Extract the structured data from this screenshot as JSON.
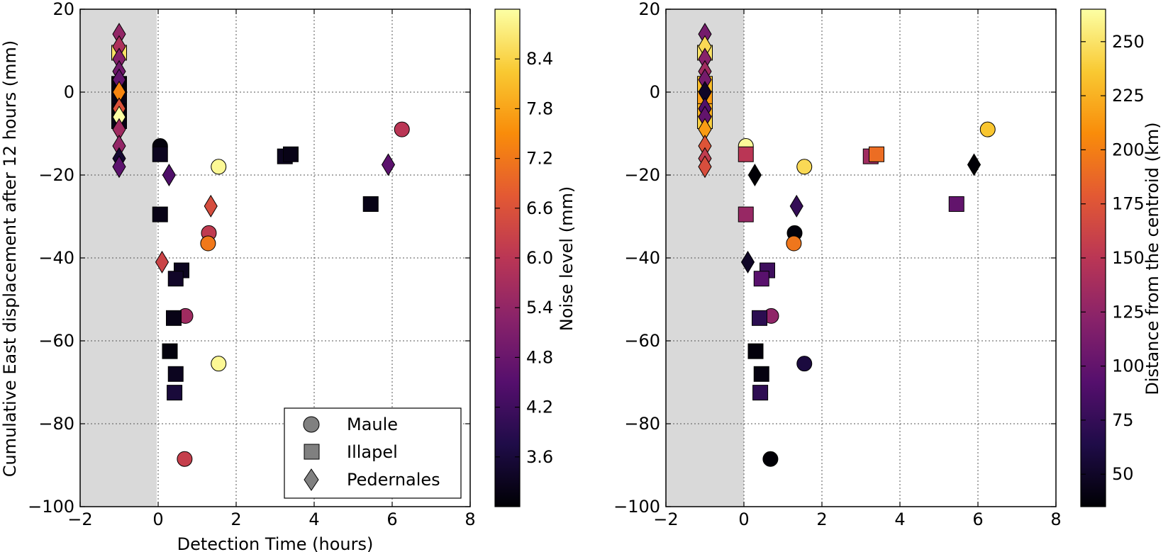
{
  "chart_data": [
    {
      "type": "scatter",
      "xlabel": "Detection Time (hours)",
      "ylabel": "Cumulative East displacement after 12 hours (mm)",
      "xlim": [
        -2,
        8
      ],
      "ylim": [
        -100,
        20
      ],
      "xticks": [
        "−2",
        "0",
        "2",
        "4",
        "6",
        "8"
      ],
      "yticks": [
        "−100",
        "−80",
        "−60",
        "−40",
        "−20",
        "0",
        "20"
      ],
      "grid": true,
      "shaded_region": [
        -2,
        0
      ],
      "colorbar": {
        "label": "Noise level (mm)",
        "range": [
          3.0,
          9.0
        ],
        "ticks": [
          "3.6",
          "4.2",
          "4.8",
          "5.4",
          "6.0",
          "6.6",
          "7.2",
          "7.8",
          "8.4"
        ]
      },
      "legend": {
        "placement": "lower-right",
        "entries": [
          "Maule",
          "Illapel",
          "Pedernales"
        ]
      },
      "series": [
        {
          "name": "Maule",
          "marker": "circle",
          "points": [
            {
              "x": 0.05,
              "y": -13,
              "c": 3.1
            },
            {
              "x": 1.55,
              "y": -18,
              "c": 8.9
            },
            {
              "x": 1.3,
              "y": -34,
              "c": 6.1
            },
            {
              "x": 1.28,
              "y": -36.5,
              "c": 7.2
            },
            {
              "x": 0.7,
              "y": -54,
              "c": 5.6
            },
            {
              "x": 1.55,
              "y": -65.5,
              "c": 8.9
            },
            {
              "x": 0.68,
              "y": -88.5,
              "c": 6.2
            },
            {
              "x": 6.25,
              "y": -9,
              "c": 6.0
            }
          ]
        },
        {
          "name": "Illapel",
          "marker": "square",
          "points": [
            {
              "x": -1.0,
              "y": -7,
              "c": 3.2
            },
            {
              "x": -1.0,
              "y": -4,
              "c": 3.1
            },
            {
              "x": -1.0,
              "y": -1,
              "c": 3.2
            },
            {
              "x": -1.0,
              "y": 2,
              "c": 3.1
            },
            {
              "x": -1.0,
              "y": 9.5,
              "c": 8.6
            },
            {
              "x": 0.05,
              "y": -15,
              "c": 3.3
            },
            {
              "x": 0.05,
              "y": -29.5,
              "c": 3.2
            },
            {
              "x": 0.6,
              "y": -43,
              "c": 3.3
            },
            {
              "x": 0.45,
              "y": -45,
              "c": 3.4
            },
            {
              "x": 0.4,
              "y": -54.5,
              "c": 3.2
            },
            {
              "x": 0.3,
              "y": -62.5,
              "c": 3.1
            },
            {
              "x": 0.45,
              "y": -68,
              "c": 3.3
            },
            {
              "x": 0.42,
              "y": -72.5,
              "c": 3.6
            },
            {
              "x": 3.25,
              "y": -15.5,
              "c": 3.3
            },
            {
              "x": 3.4,
              "y": -15,
              "c": 3.2
            },
            {
              "x": 5.45,
              "y": -27,
              "c": 3.2
            }
          ]
        },
        {
          "name": "Pedernales",
          "marker": "diamond",
          "points": [
            {
              "x": -1.0,
              "y": 14,
              "c": 5.4
            },
            {
              "x": -1.0,
              "y": 11,
              "c": 5.8
            },
            {
              "x": -1.0,
              "y": 8,
              "c": 5.2
            },
            {
              "x": -1.0,
              "y": 5,
              "c": 4.9
            },
            {
              "x": -1.0,
              "y": 3,
              "c": 4.7
            },
            {
              "x": -1.0,
              "y": 0,
              "c": 7.4
            },
            {
              "x": -1.0,
              "y": -4,
              "c": 6.6
            },
            {
              "x": -1.0,
              "y": -6,
              "c": 9.0
            },
            {
              "x": -1.0,
              "y": -9,
              "c": 5.6
            },
            {
              "x": -1.0,
              "y": -13,
              "c": 5.4
            },
            {
              "x": -1.0,
              "y": -16,
              "c": 3.5
            },
            {
              "x": -1.0,
              "y": -18,
              "c": 4.6
            },
            {
              "x": 0.28,
              "y": -20,
              "c": 4.4
            },
            {
              "x": 0.1,
              "y": -41,
              "c": 6.3
            },
            {
              "x": 1.35,
              "y": -27.5,
              "c": 6.5
            },
            {
              "x": 5.9,
              "y": -17.5,
              "c": 4.6
            }
          ]
        }
      ]
    },
    {
      "type": "scatter",
      "xlabel": "",
      "ylabel": "",
      "xlim": [
        -2,
        8
      ],
      "ylim": [
        -100,
        20
      ],
      "xticks": [
        "−2",
        "0",
        "2",
        "4",
        "6",
        "8"
      ],
      "yticks": [
        "−100",
        "−80",
        "−60",
        "−40",
        "−20",
        "0",
        "20"
      ],
      "grid": true,
      "shaded_region": [
        -2,
        0
      ],
      "colorbar": {
        "label": "Distance from the centroid (km)",
        "range": [
          35,
          265
        ],
        "ticks": [
          "50",
          "75",
          "100",
          "125",
          "150",
          "175",
          "200",
          "225",
          "250"
        ]
      },
      "series": [
        {
          "name": "Maule",
          "marker": "circle",
          "points": [
            {
              "x": 0.05,
              "y": -13,
              "c": 262
            },
            {
              "x": 1.55,
              "y": -18,
              "c": 245
            },
            {
              "x": 1.3,
              "y": -34,
              "c": 38
            },
            {
              "x": 1.28,
              "y": -36.5,
              "c": 195
            },
            {
              "x": 0.7,
              "y": -54,
              "c": 125
            },
            {
              "x": 1.55,
              "y": -65.5,
              "c": 60
            },
            {
              "x": 0.68,
              "y": -88.5,
              "c": 36
            },
            {
              "x": 6.25,
              "y": -9,
              "c": 235
            }
          ]
        },
        {
          "name": "Illapel",
          "marker": "square",
          "points": [
            {
              "x": -1.0,
              "y": -7,
              "c": 240
            },
            {
              "x": -1.0,
              "y": -4,
              "c": 225
            },
            {
              "x": -1.0,
              "y": -1,
              "c": 215
            },
            {
              "x": -1.0,
              "y": 2,
              "c": 230
            },
            {
              "x": -1.0,
              "y": 9.5,
              "c": 250
            },
            {
              "x": 0.05,
              "y": -15,
              "c": 150
            },
            {
              "x": 0.05,
              "y": -29.5,
              "c": 130
            },
            {
              "x": 0.6,
              "y": -43,
              "c": 80
            },
            {
              "x": 0.45,
              "y": -45,
              "c": 95
            },
            {
              "x": 0.4,
              "y": -54.5,
              "c": 70
            },
            {
              "x": 0.3,
              "y": -62.5,
              "c": 38
            },
            {
              "x": 0.45,
              "y": -68,
              "c": 40
            },
            {
              "x": 0.42,
              "y": -72.5,
              "c": 72
            },
            {
              "x": 3.25,
              "y": -15.5,
              "c": 135
            },
            {
              "x": 3.4,
              "y": -15,
              "c": 190
            },
            {
              "x": 5.45,
              "y": -27,
              "c": 100
            }
          ]
        },
        {
          "name": "Pedernales",
          "marker": "diamond",
          "points": [
            {
              "x": -1.0,
              "y": 14,
              "c": 110
            },
            {
              "x": -1.0,
              "y": 11,
              "c": 245
            },
            {
              "x": -1.0,
              "y": 8,
              "c": 120
            },
            {
              "x": -1.0,
              "y": 5,
              "c": 135
            },
            {
              "x": -1.0,
              "y": 3,
              "c": 110
            },
            {
              "x": -1.0,
              "y": 0,
              "c": 50
            },
            {
              "x": -1.0,
              "y": -4,
              "c": 90
            },
            {
              "x": -1.0,
              "y": -6,
              "c": 100
            },
            {
              "x": -1.0,
              "y": -9,
              "c": 215
            },
            {
              "x": -1.0,
              "y": -13,
              "c": 175
            },
            {
              "x": -1.0,
              "y": -16,
              "c": 155
            },
            {
              "x": -1.0,
              "y": -18,
              "c": 170
            },
            {
              "x": 0.28,
              "y": -20,
              "c": 36
            },
            {
              "x": 0.1,
              "y": -41,
              "c": 50
            },
            {
              "x": 1.35,
              "y": -27.5,
              "c": 75
            },
            {
              "x": 5.9,
              "y": -17.5,
              "c": 36
            }
          ]
        }
      ]
    }
  ]
}
